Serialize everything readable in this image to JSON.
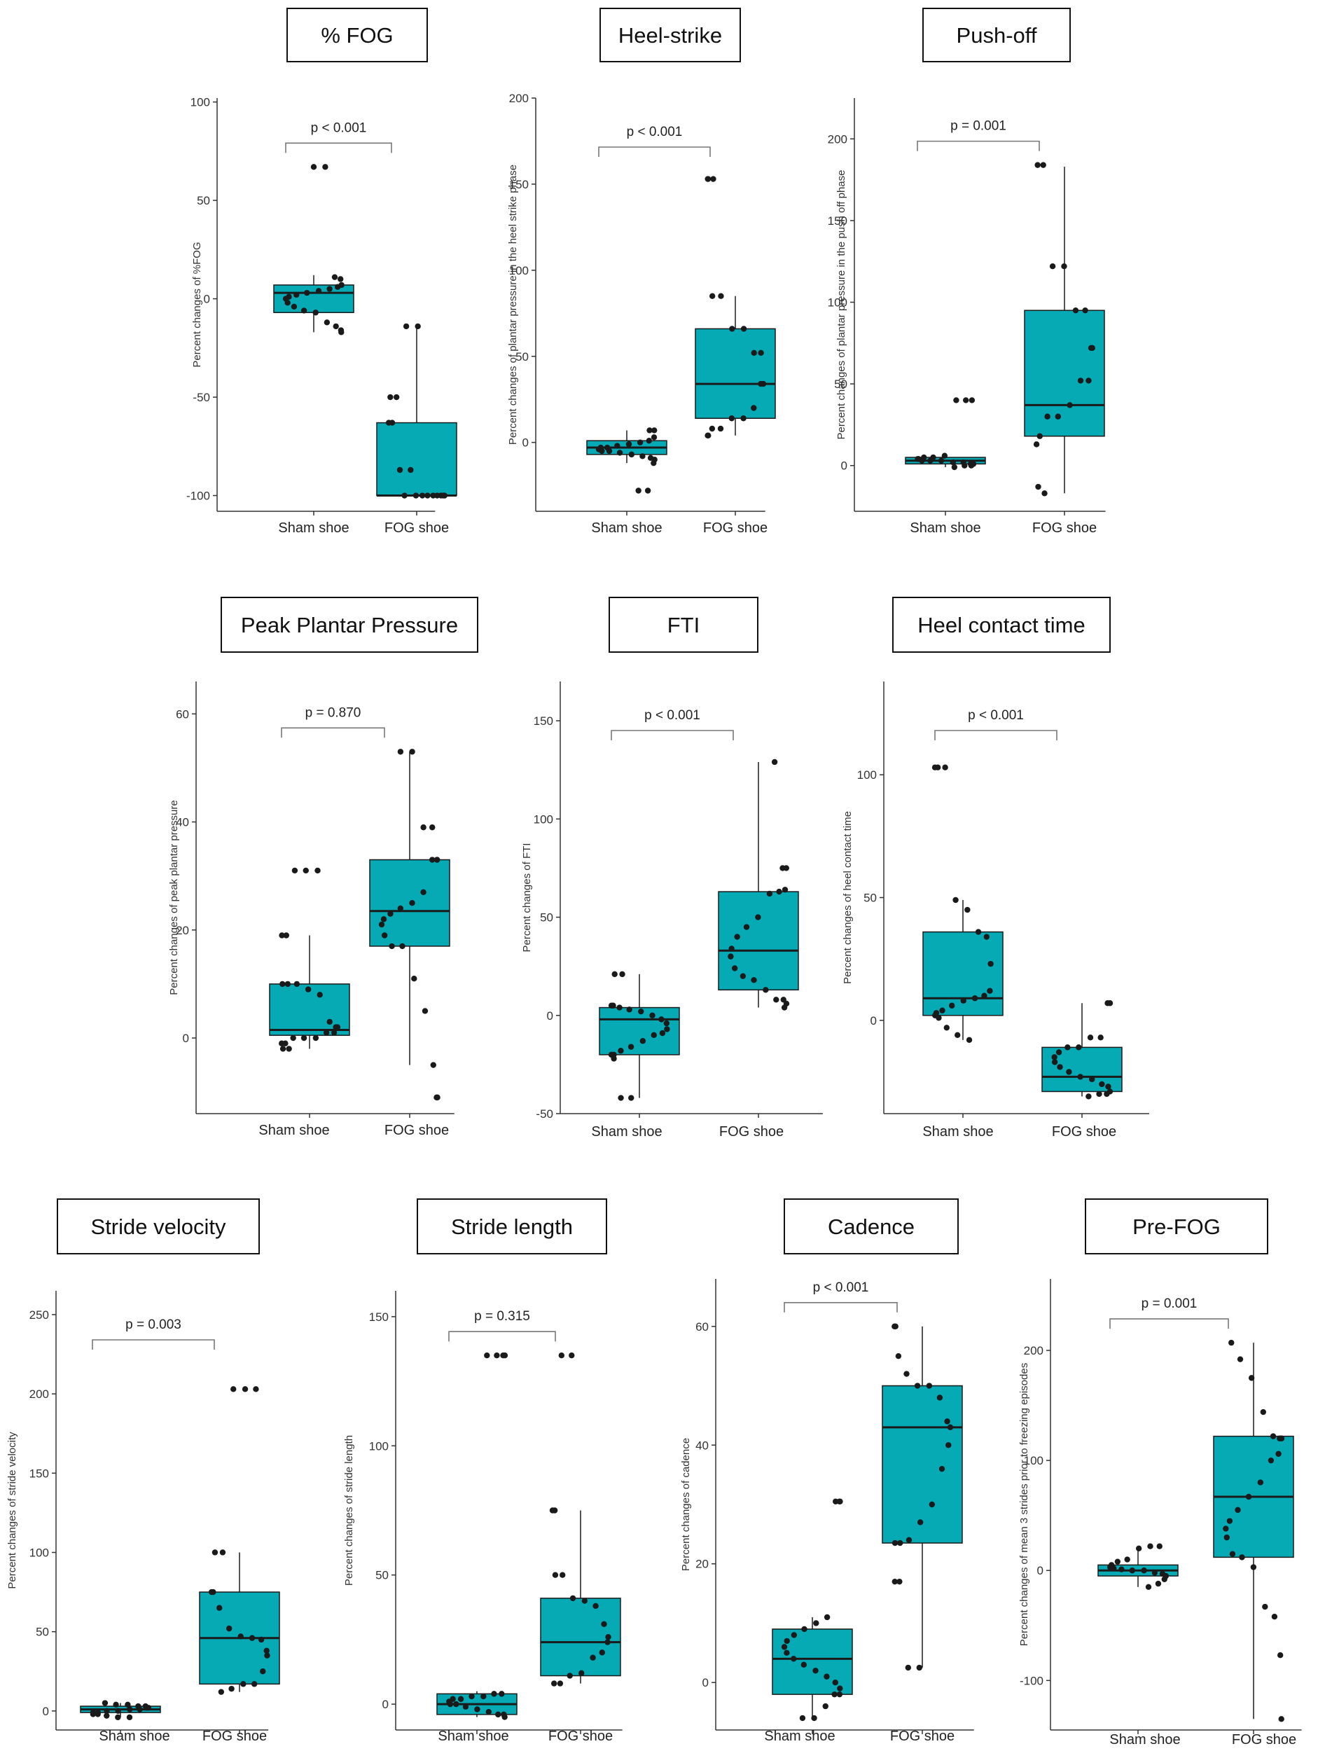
{
  "colors": {
    "box_fill": "#05aab5",
    "box_stroke": "#1a1a1a",
    "point": "#1a1a1a",
    "axis": "#333333",
    "bracket": "#777777"
  },
  "chart_data": [
    {
      "type": "box",
      "title": "% FOG",
      "ylabel": "Percent changes of %FOG",
      "categories": [
        "Sham shoe",
        "FOG shoe"
      ],
      "ylim": [
        -108,
        102
      ],
      "yticks": [
        -100,
        -50,
        0,
        50,
        100
      ],
      "p_label": "p < 0.001",
      "boxes": [
        {
          "q1": -7,
          "median": 3,
          "q3": 7,
          "whisker_low": -17,
          "whisker_high": 12
        },
        {
          "q1": -100,
          "median": -100,
          "q3": -63,
          "whisker_low": -100,
          "whisker_high": -14
        }
      ],
      "points": [
        [
          67,
          67,
          11,
          10,
          7,
          6,
          5,
          4,
          3,
          2,
          1,
          0,
          -2,
          -4,
          -6,
          -7,
          -12,
          -14,
          -16,
          -17
        ],
        [
          -14,
          -14,
          -50,
          -50,
          -63,
          -63,
          -87,
          -87,
          -100,
          -100,
          -100,
          -100,
          -100,
          -100,
          -100,
          -100,
          -100
        ]
      ]
    },
    {
      "type": "box",
      "title": "Heel-strike",
      "ylabel": "Percent changes of plantar pressure in the heel strike phase",
      "categories": [
        "Sham shoe",
        "FOG shoe"
      ],
      "ylim": [
        -40,
        200
      ],
      "yticks": [
        0,
        50,
        100,
        150,
        200
      ],
      "p_label": "p < 0.001",
      "boxes": [
        {
          "q1": -7,
          "median": -3,
          "q3": 1,
          "whisker_low": -12,
          "whisker_high": 7
        },
        {
          "q1": 14,
          "median": 34,
          "q3": 66,
          "whisker_low": 4,
          "whisker_high": 85
        }
      ],
      "points": [
        [
          7,
          7,
          3,
          1,
          0,
          -1,
          -2,
          -3,
          -3,
          -4,
          -5,
          -5,
          -6,
          -7,
          -8,
          -9,
          -10,
          -12,
          -28,
          -28
        ],
        [
          153,
          153,
          153,
          85,
          85,
          66,
          66,
          52,
          52,
          34,
          34,
          20,
          14,
          14,
          8,
          8,
          4,
          4
        ]
      ]
    },
    {
      "type": "box",
      "title": "Push-off",
      "ylabel": "Percent changes of plantar pressure in the push off phase",
      "categories": [
        "Sham shoe",
        "FOG shoe"
      ],
      "ylim": [
        -28,
        225
      ],
      "yticks": [
        0,
        50,
        100,
        150,
        200
      ],
      "p_label": "p = 0.001",
      "boxes": [
        {
          "q1": 1,
          "median": 3,
          "q3": 5,
          "whisker_low": -1,
          "whisker_high": 6
        },
        {
          "q1": 18,
          "median": 37,
          "q3": 95,
          "whisker_low": -17,
          "whisker_high": 183
        }
      ],
      "points": [
        [
          40,
          40,
          40,
          6,
          5,
          5,
          4,
          4,
          3,
          3,
          3,
          2,
          2,
          1,
          1,
          0,
          0,
          -1
        ],
        [
          184,
          184,
          122,
          122,
          95,
          95,
          72,
          72,
          52,
          52,
          37,
          30,
          30,
          18,
          13,
          -13,
          -17
        ]
      ]
    },
    {
      "type": "box",
      "title": "Peak Plantar Pressure",
      "ylabel": "Percent changes of peak plantar pressure",
      "categories": [
        "Sham shoe",
        "FOG shoe"
      ],
      "ylim": [
        -14,
        66
      ],
      "yticks": [
        0,
        20,
        40,
        60
      ],
      "p_label": "p = 0.870",
      "boxes": [
        {
          "q1": 0.5,
          "median": 1.5,
          "q3": 10,
          "whisker_low": -2,
          "whisker_high": 19
        },
        {
          "q1": 17,
          "median": 23.5,
          "q3": 33,
          "whisker_low": -5,
          "whisker_high": 53
        }
      ],
      "points": [
        [
          31,
          31,
          31,
          19,
          19,
          10,
          10,
          10,
          9,
          8,
          3,
          2,
          2,
          1,
          1,
          0,
          0,
          0,
          -1,
          -1,
          -2,
          -2
        ],
        [
          53,
          53,
          39,
          39,
          33,
          33,
          33,
          27,
          25,
          24,
          23,
          22,
          21,
          19,
          17,
          17,
          11,
          5,
          -5,
          -11,
          -11
        ]
      ]
    },
    {
      "type": "box",
      "title": "FTI",
      "ylabel": "Percent changes of FTI",
      "categories": [
        "Sham shoe",
        "FOG shoe"
      ],
      "ylim": [
        -50,
        170
      ],
      "yticks": [
        -50,
        0,
        50,
        100,
        150
      ],
      "p_label": "p < 0.001",
      "boxes": [
        {
          "q1": -20,
          "median": -2,
          "q3": 4,
          "whisker_low": -42,
          "whisker_high": 21
        },
        {
          "q1": 13,
          "median": 33,
          "q3": 63,
          "whisker_low": 4,
          "whisker_high": 129
        }
      ],
      "points": [
        [
          21,
          21,
          5,
          5,
          4,
          3,
          2,
          0,
          -2,
          -4,
          -7,
          -9,
          -10,
          -13,
          -16,
          -18,
          -20,
          -20,
          -22,
          -42,
          -42
        ],
        [
          129,
          75,
          75,
          64,
          63,
          62,
          50,
          45,
          40,
          34,
          30,
          24,
          20,
          18,
          13,
          8,
          8,
          6,
          4
        ]
      ]
    },
    {
      "type": "box",
      "title": "Heel contact time",
      "ylabel": "Percent changes of heel contact time",
      "categories": [
        "Sham shoe",
        "FOG shoe"
      ],
      "ylim": [
        -38,
        138
      ],
      "yticks": [
        0,
        50,
        100
      ],
      "p_label": "p < 0.001",
      "boxes": [
        {
          "q1": 2,
          "median": 9,
          "q3": 36,
          "whisker_low": -8,
          "whisker_high": 49
        },
        {
          "q1": -29,
          "median": -23,
          "q3": -11,
          "whisker_low": -31,
          "whisker_high": 7
        }
      ],
      "points": [
        [
          103,
          103,
          103,
          49,
          45,
          36,
          34,
          23,
          12,
          10,
          9,
          8,
          6,
          4,
          3,
          2,
          1,
          -3,
          -6,
          -8
        ],
        [
          7,
          7,
          -7,
          -7,
          -11,
          -11,
          -13,
          -15,
          -17,
          -19,
          -21,
          -23,
          -24,
          -26,
          -27,
          -29,
          -30,
          -30,
          -31
        ]
      ]
    },
    {
      "type": "box",
      "title": "Stride velocity",
      "ylabel": "Percent changes of stride velocity",
      "categories": [
        "Sham shoe",
        "FOG shoe"
      ],
      "ylim": [
        -12,
        265
      ],
      "yticks": [
        0,
        50,
        100,
        150,
        200,
        250
      ],
      "p_label": "p = 0.003",
      "boxes": [
        {
          "q1": -1,
          "median": 1,
          "q3": 3,
          "whisker_low": -4,
          "whisker_high": 5
        },
        {
          "q1": 17,
          "median": 46,
          "q3": 75,
          "whisker_low": 12,
          "whisker_high": 100
        }
      ],
      "points": [
        [
          5,
          4,
          4,
          3,
          3,
          2,
          2,
          1,
          1,
          0,
          0,
          -1,
          -1,
          -2,
          -2,
          -3,
          -4,
          -4
        ],
        [
          203,
          203,
          203,
          100,
          100,
          75,
          75,
          65,
          52,
          47,
          46,
          45,
          38,
          35,
          25,
          17,
          17,
          14,
          12
        ]
      ]
    },
    {
      "type": "box",
      "title": "Stride length",
      "ylabel": "Percent changes of stride length",
      "categories": [
        "Sham shoe",
        "FOG shoe"
      ],
      "ylim": [
        -10,
        160
      ],
      "yticks": [
        0,
        50,
        100,
        150
      ],
      "p_label": "p = 0.315",
      "boxes": [
        {
          "q1": -4,
          "median": 0,
          "q3": 4,
          "whisker_low": -5,
          "whisker_high": 5
        },
        {
          "q1": 11,
          "median": 24,
          "q3": 41,
          "whisker_low": 8,
          "whisker_high": 75
        }
      ],
      "points": [
        [
          135,
          135,
          135,
          135,
          4,
          4,
          3,
          3,
          2,
          2,
          1,
          0,
          0,
          -1,
          -2,
          -3,
          -4,
          -4,
          -5
        ],
        [
          135,
          135,
          75,
          75,
          50,
          50,
          41,
          40,
          38,
          31,
          26,
          24,
          20,
          18,
          12,
          11,
          8,
          8
        ]
      ]
    },
    {
      "type": "box",
      "title": "Cadence",
      "ylabel": "Percent changes of cadence",
      "categories": [
        "Sham shoe",
        "FOG shoe"
      ],
      "ylim": [
        -8,
        68
      ],
      "yticks": [
        0,
        20,
        40,
        60
      ],
      "p_label": "p < 0.001",
      "boxes": [
        {
          "q1": -2,
          "median": 4,
          "q3": 9,
          "whisker_low": -6,
          "whisker_high": 11
        },
        {
          "q1": 23.5,
          "median": 43,
          "q3": 50,
          "whisker_low": 2.5,
          "whisker_high": 60
        }
      ],
      "points": [
        [
          30.5,
          30.5,
          30.5,
          11,
          10,
          9,
          8,
          7,
          6,
          5,
          4,
          3,
          2,
          1,
          0,
          -1,
          -2,
          -2,
          -4,
          -6,
          -6
        ],
        [
          60,
          60,
          55,
          52,
          50,
          50,
          48,
          44,
          43,
          40,
          36,
          30,
          27,
          24,
          23.5,
          23.5,
          17,
          17,
          2.5,
          2.5
        ]
      ]
    },
    {
      "type": "box",
      "title": "Pre-FOG",
      "ylabel": "Percent changes of mean 3 strides prior to freezing episodes",
      "categories": [
        "Sham shoe",
        "FOG shoe"
      ],
      "ylim": [
        -145,
        265
      ],
      "yticks": [
        -100,
        0,
        100,
        200
      ],
      "p_label": "p = 0.001",
      "boxes": [
        {
          "q1": -5,
          "median": 0,
          "q3": 5,
          "whisker_low": -15,
          "whisker_high": 22
        },
        {
          "q1": 12,
          "median": 67,
          "q3": 122,
          "whisker_low": -135,
          "whisker_high": 207
        }
      ],
      "points": [
        [
          22,
          22,
          20,
          10,
          8,
          5,
          3,
          2,
          1,
          0,
          0,
          -2,
          -3,
          -5,
          -8,
          -12,
          -15
        ],
        [
          207,
          192,
          175,
          144,
          122,
          120,
          120,
          106,
          100,
          80,
          67,
          55,
          45,
          38,
          30,
          15,
          12,
          3,
          -33,
          -42,
          -77,
          -135
        ]
      ]
    }
  ]
}
